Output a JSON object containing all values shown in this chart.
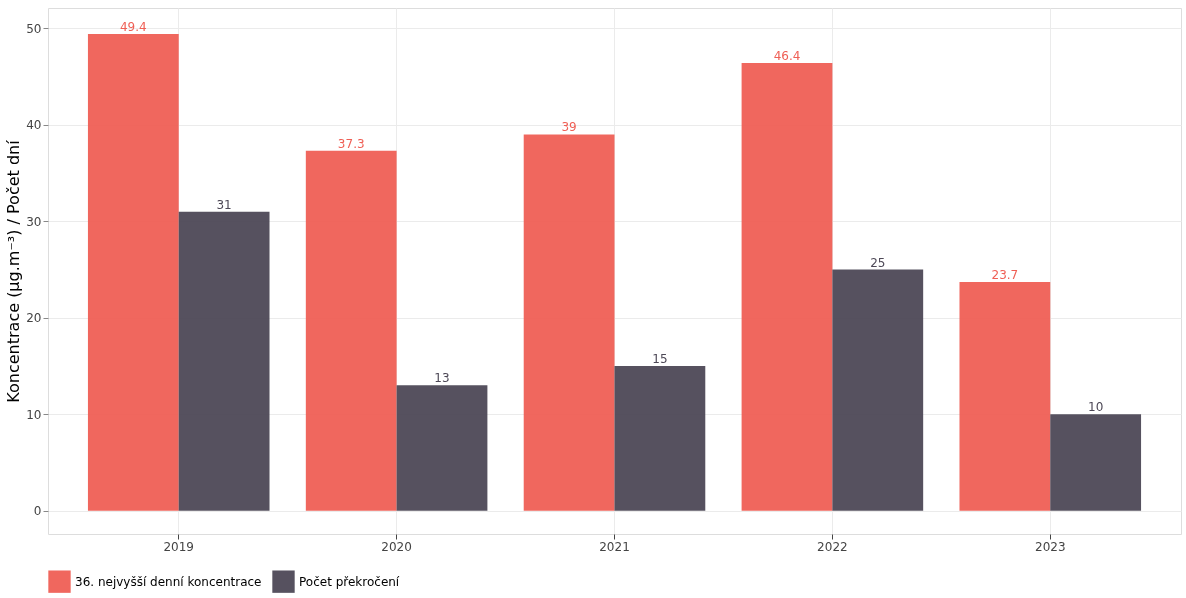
{
  "chart_data": {
    "type": "bar",
    "ylabel": "Koncentrace (µg.m⁻³) / Počet dní",
    "categories": [
      "2019",
      "2020",
      "2021",
      "2022",
      "2023"
    ],
    "series": [
      {
        "name": "36. nejvyšší denní koncentrace",
        "color": "#ef5f55",
        "values": [
          49.4,
          37.3,
          39,
          46.4,
          23.7
        ]
      },
      {
        "name": "Počet překročení",
        "color": "#4d4856",
        "values": [
          31,
          13,
          15,
          25,
          10
        ]
      }
    ],
    "ylim": [
      -2.4,
      52.1
    ],
    "yticks": [
      0,
      10,
      20,
      30,
      40,
      50
    ],
    "grid": true,
    "legend": "bottom",
    "data_labels": true
  }
}
